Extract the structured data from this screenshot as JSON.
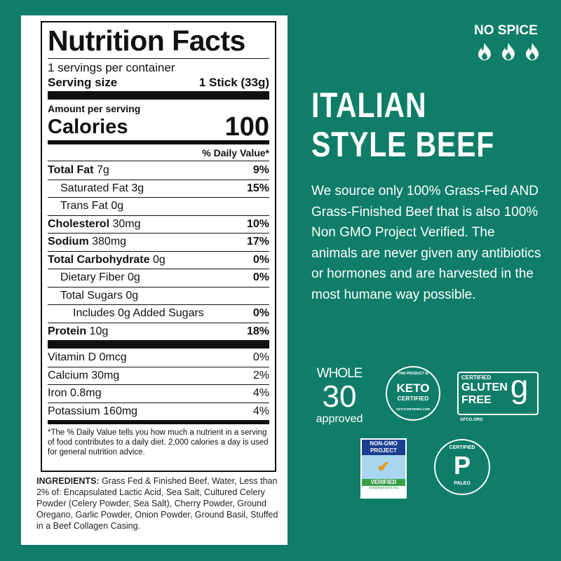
{
  "label": {
    "title": "Nutrition Facts",
    "servings": "1 servings per container",
    "serving_size_label": "Serving size",
    "serving_size_value": "1 Stick (33g)",
    "amount_per_serving": "Amount per serving",
    "calories_label": "Calories",
    "calories_value": "100",
    "dv_header": "% Daily Value*",
    "nutrients": [
      {
        "name": "Total Fat",
        "amount": "7g",
        "dv": "9%"
      },
      {
        "name": "Saturated Fat",
        "amount": "3g",
        "dv": "15%"
      },
      {
        "name": "Trans Fat",
        "amount": "0g",
        "dv": ""
      },
      {
        "name": "Cholesterol",
        "amount": "30mg",
        "dv": "10%"
      },
      {
        "name": "Sodium",
        "amount": "380mg",
        "dv": "17%"
      },
      {
        "name": "Total Carbohydrate",
        "amount": "0g",
        "dv": "0%"
      },
      {
        "name": "Dietary Fiber",
        "amount": "0g",
        "dv": "0%"
      },
      {
        "name": "Total Sugars",
        "amount": "0g",
        "dv": ""
      },
      {
        "name": "Includes 0g Added Sugars",
        "amount": "",
        "dv": "0%"
      },
      {
        "name": "Protein",
        "amount": "10g",
        "dv": "18%"
      }
    ],
    "vitamins": [
      {
        "name": "Vitamin D 0mcg",
        "dv": "0%"
      },
      {
        "name": "Calcium 30mg",
        "dv": "2%"
      },
      {
        "name": "Iron 0.8mg",
        "dv": "4%"
      },
      {
        "name": "Potassium 160mg",
        "dv": "4%"
      }
    ],
    "footnote": "*The % Daily Value tells you how much a nutrient in a serving of food contributes to a daily diet. 2,000 calories a day is used for general nutrition advice."
  },
  "ingredients": {
    "label": "INGREDIENTS:",
    "text": "Grass Fed & Finished Beef, Water, Less than 2% of: Encapsulated Lactic Acid, Sea Salt, Cultured Celery Powder (Celery Powder, Sea Salt), Cherry Powder, Ground Oregano, Garlic Powder, Onion Powder, Ground Basil, Stuffed in a Beef Collagen Casing."
  },
  "spice": {
    "label": "NO SPICE",
    "icon": "flame-icon",
    "level": 0
  },
  "product": {
    "line1": "ITALIAN",
    "line2": "STYLE BEEF",
    "description": "We source only 100% Grass-Fed AND Grass-Finished Beef that is also 100% Non GMO Project Verified. The animals are never given any antibiotics or hormones and are harvested in the most humane way possible."
  },
  "badges": {
    "whole30": {
      "line1": "WHOLE",
      "line2": "30",
      "line3": "approved"
    },
    "keto": {
      "top": "THIS PRODUCT IS",
      "main1": "KETO",
      "main2": "CERTIFIED",
      "bottom": "KETOCERTIFIED.COM"
    },
    "gluten": {
      "top": "CERTIFIED",
      "main1": "GLUTEN",
      "main2": "FREE",
      "bottom": "GFCO.ORG"
    },
    "nongmo": {
      "top1": "NON-GMO",
      "top2": "PROJECT",
      "main": "VERIFIED",
      "bottom": "nongmoproject.org"
    },
    "paleo": {
      "top": "CERTIFIED",
      "main": "P",
      "bottom": "PALEO"
    }
  },
  "colors": {
    "background": "#0f7d68",
    "text": "#ffffff"
  }
}
